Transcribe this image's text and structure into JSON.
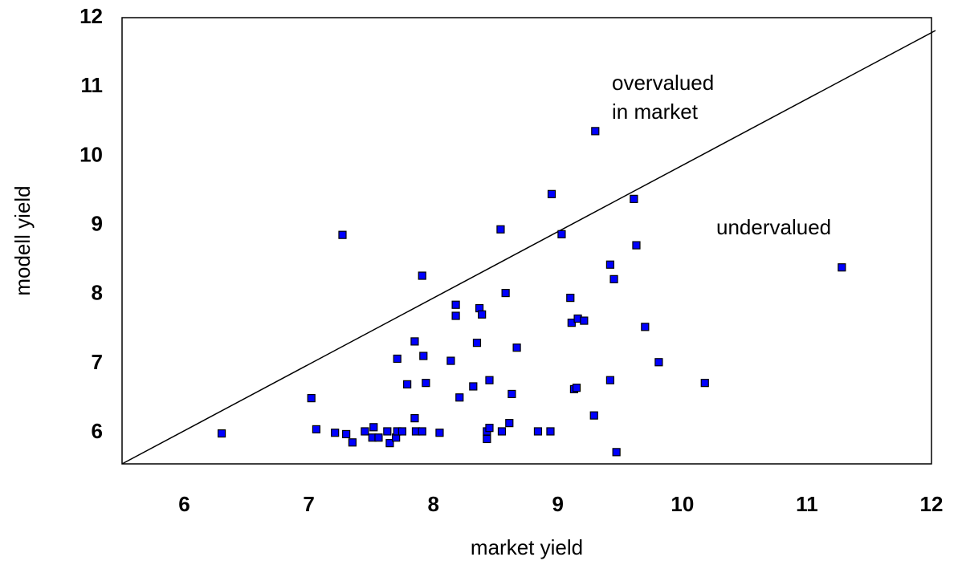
{
  "chart_data": {
    "type": "scatter",
    "xlabel": "market yield",
    "ylabel": "modell yield",
    "annotations": [
      "overvalued",
      "in market",
      "undervalued"
    ],
    "xlim": [
      5.5,
      12
    ],
    "ylim": [
      5.55,
      12
    ],
    "xticks": [
      6,
      7,
      8,
      9,
      10,
      11,
      12
    ],
    "yticks": [
      6,
      7,
      8,
      9,
      10,
      11,
      12
    ],
    "color": "#0000ff",
    "x": [
      6.3,
      7.02,
      7.06,
      7.21,
      7.3,
      7.35,
      7.27,
      7.45,
      7.52,
      7.51,
      7.56,
      7.63,
      7.65,
      7.7,
      7.71,
      7.75,
      7.71,
      7.79,
      7.85,
      7.85,
      7.86,
      7.91,
      7.91,
      7.92,
      7.94,
      8.05,
      8.14,
      8.18,
      8.18,
      8.21,
      8.32,
      8.35,
      8.37,
      8.39,
      8.43,
      8.43,
      8.45,
      8.45,
      8.54,
      8.55,
      8.58,
      8.61,
      8.63,
      8.67,
      8.84,
      8.94,
      8.95,
      9.03,
      9.1,
      9.11,
      9.13,
      9.15,
      9.16,
      9.21,
      9.29,
      9.3,
      9.42,
      9.42,
      9.45,
      9.47,
      9.61,
      9.63,
      9.7,
      9.81,
      10.18,
      11.28
    ],
    "values": [
      5.99,
      6.5,
      6.05,
      6.0,
      5.98,
      5.86,
      8.86,
      6.02,
      6.08,
      5.93,
      5.93,
      6.02,
      5.85,
      5.93,
      6.02,
      6.02,
      7.07,
      6.7,
      7.32,
      6.21,
      6.02,
      6.02,
      8.27,
      7.11,
      6.72,
      6.0,
      7.04,
      7.85,
      7.69,
      6.51,
      6.67,
      7.3,
      7.8,
      7.71,
      6.02,
      5.91,
      6.07,
      6.76,
      8.94,
      6.02,
      8.02,
      6.14,
      6.56,
      7.23,
      6.02,
      6.02,
      9.45,
      8.87,
      7.95,
      7.59,
      6.63,
      6.65,
      7.65,
      7.62,
      6.25,
      10.36,
      8.43,
      6.76,
      8.22,
      5.72,
      9.38,
      8.71,
      7.53,
      7.02,
      6.72,
      8.39
    ]
  }
}
